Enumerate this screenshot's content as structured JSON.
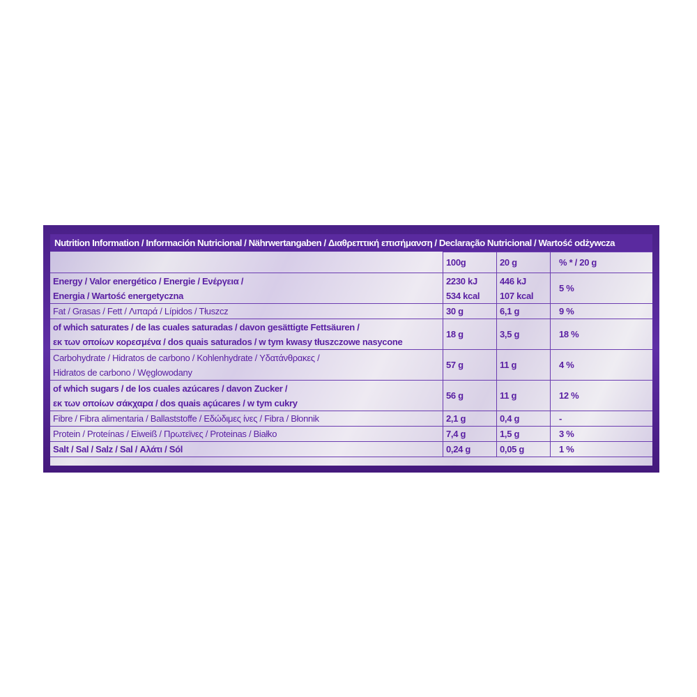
{
  "title": "Nutrition Information / Información Nutricional / Nährwertangaben / Διαθρεπτική επισήμανση / Declaração Nutricional / Wartość odżywcza",
  "columns": [
    "100g",
    "20 g",
    "% * / 20 g"
  ],
  "rows": [
    {
      "label": [
        "Energy / Valor energético / Energie / Ενέργεια /",
        "Energia / Wartość energetyczna"
      ],
      "per100": [
        "2230 kJ",
        "534 kcal"
      ],
      "per20": [
        "446 kJ",
        "107 kcal"
      ],
      "pct": "5 %"
    },
    {
      "label": [
        "Fat / Grasas / Fett / Λιπαρά / Lípidos / Tłuszcz"
      ],
      "per100": [
        "30 g"
      ],
      "per20": [
        "6,1 g"
      ],
      "pct": "9 %"
    },
    {
      "label": [
        "of which saturates / de las cuales saturadas / davon gesättigte Fettsäuren /",
        "εκ των οποίων κορεσμένα / dos quais saturados / w tym kwasy tłuszczowe nasycone"
      ],
      "per100": [
        "18 g"
      ],
      "per20": [
        "3,5 g"
      ],
      "pct": "18 %"
    },
    {
      "label": [
        "Carbohydrate / Hidratos de carbono / Kohlenhydrate / Υδατάνθρακες /",
        "Hidratos de carbono / Węglowodany"
      ],
      "per100": [
        "57 g"
      ],
      "per20": [
        "11 g"
      ],
      "pct": "4 %"
    },
    {
      "label": [
        "of which sugars / de los cuales azúcares / davon Zucker /",
        "εκ των οποίων σάκχαρα / dos quais açúcares / w tym cukry"
      ],
      "per100": [
        "56 g"
      ],
      "per20": [
        "11 g"
      ],
      "pct": "12 %"
    },
    {
      "label": [
        "Fibre / Fibra alimentaria / Ballaststoffe / Εδώδιμες ίνες / Fibra / Błonnik"
      ],
      "per100": [
        "2,1 g"
      ],
      "per20": [
        "0,4 g"
      ],
      "pct": "-"
    },
    {
      "label": [
        "Protein / Proteínas / Eiweiß / Πρωτεϊνες / Proteinas / Białko"
      ],
      "per100": [
        "7,4 g"
      ],
      "per20": [
        "1,5 g"
      ],
      "pct": "3 %"
    },
    {
      "label": [
        "Salt / Sal / Salz / Sal / Αλάτι / Sól"
      ],
      "per100": [
        "0,24 g"
      ],
      "per20": [
        "0,05 g"
      ],
      "pct": "1 %"
    }
  ],
  "colors": {
    "purple": "#5a2a9f",
    "text": "#5a20a3"
  }
}
